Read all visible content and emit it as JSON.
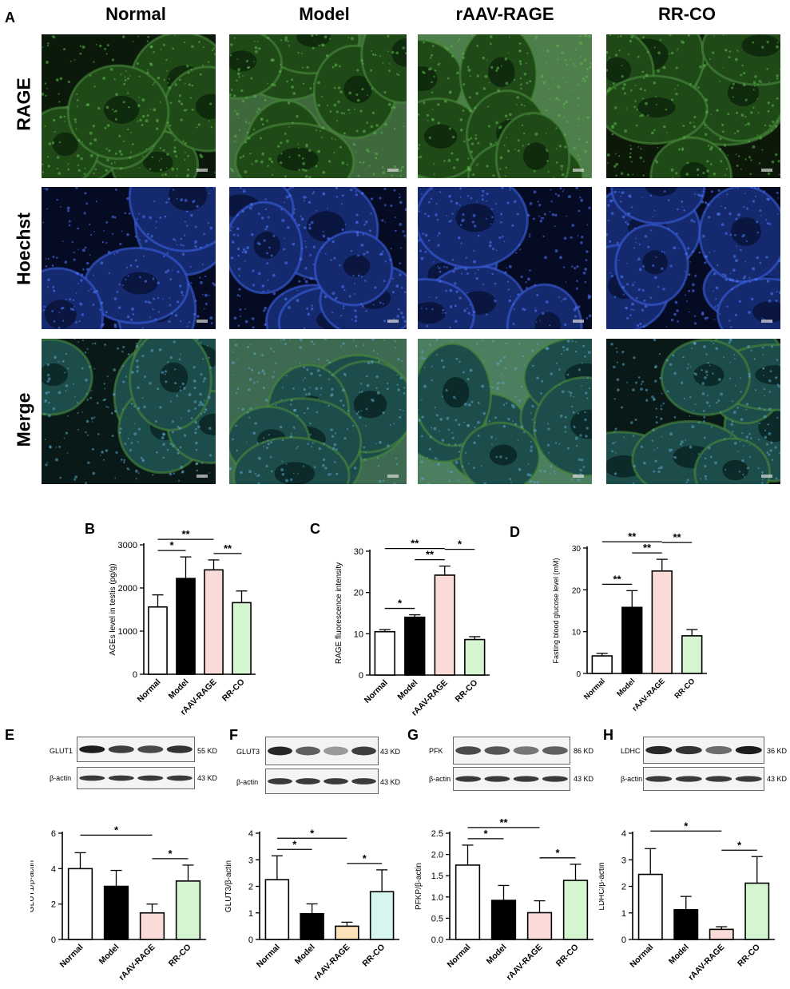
{
  "panel_a": {
    "letter": "A",
    "columns": [
      "Normal",
      "Model",
      "rAAV-RAGE",
      "RR-CO"
    ],
    "rows": [
      "RAGE",
      "Hoechst",
      "Merge"
    ]
  },
  "colors": {
    "normal": "#ffffff",
    "model": "#000000",
    "raav": "#fadbd8",
    "rrco": "#d5f5d0",
    "raav_glut3": "#fbe0b8",
    "rrco_glut3": "#d6f5ee"
  },
  "blots": [
    {
      "letter": "E",
      "target": "GLUT1",
      "target_kd": "55 KD",
      "control": "β-actin",
      "control_kd": "43 KD"
    },
    {
      "letter": "F",
      "target": "GLUT3",
      "target_kd": "43 KD",
      "control": "β-actin",
      "control_kd": "43 KD"
    },
    {
      "letter": "G",
      "target": "PFK",
      "target_kd": "86 KD",
      "control": "β-actin",
      "control_kd": "43 KD"
    },
    {
      "letter": "H",
      "target": "LDHC",
      "target_kd": "36 KD",
      "control": "β-actin",
      "control_kd": "43 KD"
    }
  ],
  "chart_data": [
    {
      "letter": "B",
      "type": "bar",
      "categories": [
        "Normal",
        "Model",
        "rAAV-RAGE",
        "RR-CO"
      ],
      "values": [
        1560,
        2220,
        2420,
        1660
      ],
      "errors": [
        280,
        500,
        230,
        270
      ],
      "ylabel": "AGEs level in testis  (pg/g)",
      "ylim": [
        0,
        3000
      ],
      "yticks": [
        0,
        1000,
        2000,
        3000
      ],
      "significance": [
        {
          "from": 0,
          "to": 1,
          "label": "*"
        },
        {
          "from": 0,
          "to": 2,
          "label": "**"
        },
        {
          "from": 2,
          "to": 3,
          "label": "**"
        }
      ]
    },
    {
      "letter": "C",
      "type": "bar",
      "categories": [
        "Normal",
        "Model",
        "rAAV-RAGE",
        "RR-CO"
      ],
      "values": [
        10.5,
        14,
        24.2,
        8.6
      ],
      "errors": [
        0.5,
        0.6,
        2.2,
        0.7
      ],
      "ylabel": "RAGE fluorescence intensity",
      "ylim": [
        0,
        30
      ],
      "yticks": [
        0,
        10,
        20,
        30
      ],
      "significance": [
        {
          "from": 0,
          "to": 1,
          "label": "*"
        },
        {
          "from": 0,
          "to": 2,
          "label": "**"
        },
        {
          "from": 1,
          "to": 2,
          "label": "**"
        },
        {
          "from": 2,
          "to": 3,
          "label": "*"
        }
      ]
    },
    {
      "letter": "D",
      "type": "bar",
      "categories": [
        "Normal",
        "Model",
        "rAAV-RAGE",
        "RR-CO"
      ],
      "values": [
        4.2,
        15.8,
        24.5,
        9
      ],
      "errors": [
        0.6,
        4,
        2.8,
        1.5
      ],
      "ylabel": "Fasting blood glucose level (mM)",
      "ylim": [
        0,
        30
      ],
      "yticks": [
        0,
        10,
        20,
        30
      ],
      "significance": [
        {
          "from": 0,
          "to": 1,
          "label": "**"
        },
        {
          "from": 0,
          "to": 2,
          "label": "**"
        },
        {
          "from": 1,
          "to": 2,
          "label": "**"
        },
        {
          "from": 2,
          "to": 3,
          "label": "**"
        }
      ]
    },
    {
      "letter": "",
      "type": "bar",
      "categories": [
        "Normal",
        "Model",
        "rAAV-RAGE",
        "RR-CO"
      ],
      "values": [
        4,
        3,
        1.5,
        3.3
      ],
      "errors": [
        0.9,
        0.9,
        0.5,
        0.9
      ],
      "ylabel": "GLUT1/β-actin",
      "ylim": [
        0,
        6
      ],
      "yticks": [
        0,
        2,
        4,
        6
      ],
      "significance": [
        {
          "from": 0,
          "to": 2,
          "label": "*"
        },
        {
          "from": 2,
          "to": 3,
          "label": "*"
        }
      ]
    },
    {
      "letter": "",
      "type": "bar",
      "categories": [
        "Normal",
        "Model",
        "rAAV-RAGE",
        "RR-CO"
      ],
      "values": [
        2.25,
        0.97,
        0.5,
        1.8
      ],
      "errors": [
        0.9,
        0.37,
        0.15,
        0.82
      ],
      "ylabel": "GLUT3/β-actin",
      "ylim": [
        0,
        4
      ],
      "yticks": [
        0,
        1,
        2,
        3,
        4
      ],
      "significance": [
        {
          "from": 0,
          "to": 1,
          "label": "*"
        },
        {
          "from": 0,
          "to": 2,
          "label": "*"
        },
        {
          "from": 2,
          "to": 3,
          "label": "*"
        }
      ]
    },
    {
      "letter": "",
      "type": "bar",
      "categories": [
        "Normal",
        "Model",
        "rAAV-RAGE",
        "RR-CO"
      ],
      "values": [
        1.75,
        0.92,
        0.63,
        1.39
      ],
      "errors": [
        0.47,
        0.35,
        0.28,
        0.38
      ],
      "ylabel": "PFKP/β-actin",
      "ylim": [
        0,
        2.5
      ],
      "yticks": [
        0,
        0.5,
        1.0,
        1.5,
        2.0,
        2.5
      ],
      "significance": [
        {
          "from": 0,
          "to": 1,
          "label": "*"
        },
        {
          "from": 0,
          "to": 2,
          "label": "**"
        },
        {
          "from": 2,
          "to": 3,
          "label": "*"
        }
      ]
    },
    {
      "letter": "",
      "type": "bar",
      "categories": [
        "Normal",
        "Model",
        "rAAV-RAGE",
        "RR-CO"
      ],
      "values": [
        2.45,
        1.12,
        0.38,
        2.12
      ],
      "errors": [
        0.97,
        0.5,
        0.1,
        1.0
      ],
      "ylabel": "LDHC/β-actin",
      "ylim": [
        0,
        4
      ],
      "yticks": [
        0,
        1,
        2,
        3,
        4
      ],
      "significance": [
        {
          "from": 0,
          "to": 2,
          "label": "*"
        },
        {
          "from": 2,
          "to": 3,
          "label": "*"
        }
      ]
    }
  ]
}
